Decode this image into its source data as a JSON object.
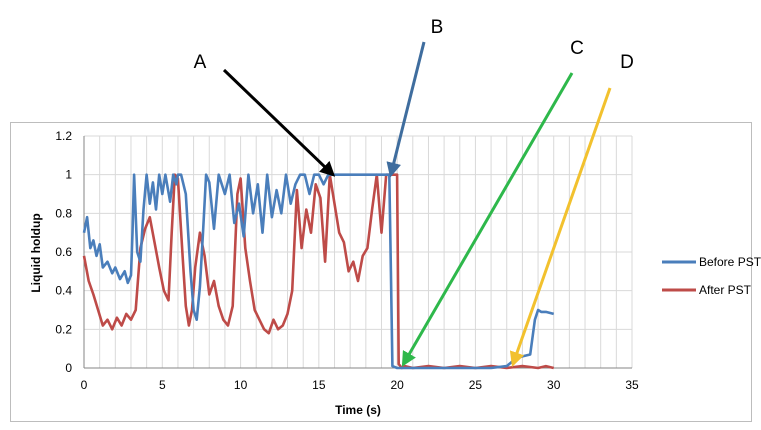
{
  "chart_data": {
    "type": "line",
    "title": "",
    "xlabel": "Time (s)",
    "ylabel": "Liquid holdup",
    "xlim": [
      0,
      35
    ],
    "ylim": [
      0,
      1.2
    ],
    "x_ticks": [
      "0",
      "5",
      "10",
      "15",
      "20",
      "25",
      "30",
      "35"
    ],
    "y_ticks": [
      "0",
      "0.2",
      "0.4",
      "0.6",
      "0.8",
      "1",
      "1.2"
    ],
    "grid": true,
    "legend_position": "right",
    "series": [
      {
        "name": "Before PST",
        "color": "#4a7ebb",
        "x": [
          0,
          0.2,
          0.4,
          0.6,
          0.8,
          1.0,
          1.2,
          1.5,
          1.8,
          2.0,
          2.3,
          2.6,
          2.8,
          3.0,
          3.1,
          3.2,
          3.4,
          3.6,
          3.8,
          4.0,
          4.2,
          4.4,
          4.6,
          4.8,
          5.0,
          5.2,
          5.5,
          5.7,
          5.9,
          6.0,
          6.2,
          6.5,
          6.8,
          7.0,
          7.2,
          7.4,
          7.6,
          7.8,
          8.0,
          8.3,
          8.6,
          9.0,
          9.3,
          9.6,
          9.9,
          10.2,
          10.5,
          10.8,
          11.1,
          11.4,
          11.7,
          12.0,
          12.3,
          12.6,
          12.9,
          13.2,
          13.5,
          13.8,
          14.1,
          14.4,
          14.7,
          15.0,
          15.3,
          15.6,
          15.9,
          16.2,
          17.0,
          18.0,
          18.5,
          18.8,
          19.0,
          19.2,
          19.5,
          19.6,
          19.7,
          20.0,
          21,
          22,
          23,
          24,
          25,
          26,
          27,
          27.3,
          27.6,
          28.0,
          28.5,
          28.8,
          29.0,
          29.2,
          29.5,
          30.0
        ],
        "values": [
          0.7,
          0.78,
          0.62,
          0.66,
          0.58,
          0.64,
          0.52,
          0.55,
          0.49,
          0.52,
          0.46,
          0.5,
          0.44,
          0.48,
          0.7,
          1.0,
          0.6,
          0.55,
          0.82,
          1.0,
          0.85,
          0.96,
          0.82,
          1.0,
          0.9,
          1.0,
          0.86,
          1.0,
          0.95,
          1.0,
          1.0,
          0.9,
          0.5,
          0.3,
          0.25,
          0.42,
          0.7,
          1.0,
          0.96,
          0.72,
          1.0,
          0.9,
          1.0,
          0.75,
          0.85,
          0.68,
          1.0,
          0.8,
          0.95,
          0.7,
          1.0,
          0.78,
          0.92,
          0.8,
          1.0,
          0.85,
          0.95,
          1.0,
          1.0,
          0.9,
          1.0,
          1.0,
          0.95,
          1.0,
          1.0,
          1.0,
          1.0,
          1.0,
          1.0,
          1.0,
          1.0,
          1.0,
          1.0,
          0.5,
          0.01,
          0.0,
          0.0,
          0.0,
          0.0,
          0.0,
          0.0,
          0.0,
          0.01,
          0.03,
          0.05,
          0.06,
          0.07,
          0.25,
          0.3,
          0.29,
          0.29,
          0.28
        ]
      },
      {
        "name": "After PST",
        "color": "#be4b48",
        "x": [
          0,
          0.3,
          0.6,
          0.9,
          1.2,
          1.5,
          1.8,
          2.1,
          2.4,
          2.7,
          3.0,
          3.3,
          3.6,
          3.9,
          4.2,
          4.5,
          4.8,
          5.1,
          5.4,
          5.6,
          5.8,
          6.0,
          6.3,
          6.5,
          6.7,
          6.9,
          7.1,
          7.4,
          7.7,
          8.0,
          8.3,
          8.6,
          8.9,
          9.2,
          9.5,
          9.8,
          10.0,
          10.3,
          10.6,
          10.9,
          11.2,
          11.5,
          11.8,
          12.1,
          12.4,
          12.7,
          13.0,
          13.3,
          13.6,
          13.9,
          14.2,
          14.5,
          14.8,
          15.1,
          15.4,
          15.7,
          16.0,
          16.3,
          16.6,
          16.9,
          17.2,
          17.5,
          17.8,
          18.1,
          18.4,
          18.7,
          19.0,
          19.3,
          19.6,
          19.8,
          20.0,
          20.1,
          20.3,
          20.5,
          21,
          22,
          23,
          24,
          25,
          26,
          27,
          28,
          29,
          29.5,
          30.0
        ],
        "values": [
          0.58,
          0.45,
          0.38,
          0.3,
          0.22,
          0.25,
          0.2,
          0.26,
          0.22,
          0.28,
          0.25,
          0.3,
          0.62,
          0.72,
          0.78,
          0.65,
          0.52,
          0.4,
          0.35,
          0.7,
          1.0,
          0.98,
          0.58,
          0.32,
          0.22,
          0.3,
          0.52,
          0.7,
          0.58,
          0.38,
          0.45,
          0.32,
          0.25,
          0.22,
          0.32,
          0.9,
          0.98,
          0.62,
          0.45,
          0.3,
          0.25,
          0.2,
          0.18,
          0.25,
          0.2,
          0.22,
          0.28,
          0.4,
          0.92,
          0.62,
          0.82,
          0.7,
          0.95,
          0.88,
          0.55,
          1.0,
          0.85,
          0.7,
          0.65,
          0.5,
          0.55,
          0.45,
          0.58,
          0.62,
          0.82,
          1.0,
          0.7,
          1.0,
          1.0,
          1.0,
          1.0,
          0.02,
          0.0,
          0.01,
          0.0,
          0.01,
          0.0,
          0.01,
          0.0,
          0.01,
          0.0,
          0.01,
          0.0,
          0.01,
          0.0
        ]
      }
    ],
    "annotations": [
      {
        "label": "A",
        "arrow_color": "#000000",
        "points_to": [
          15.9,
          1.0
        ]
      },
      {
        "label": "B",
        "arrow_color": "#3f6d9e",
        "points_to": [
          19.6,
          1.0
        ]
      },
      {
        "label": "C",
        "arrow_color": "#2eb84b",
        "points_to": [
          20.4,
          0.02
        ]
      },
      {
        "label": "D",
        "arrow_color": "#f2c12e",
        "points_to": [
          27.4,
          0.02
        ]
      }
    ]
  }
}
